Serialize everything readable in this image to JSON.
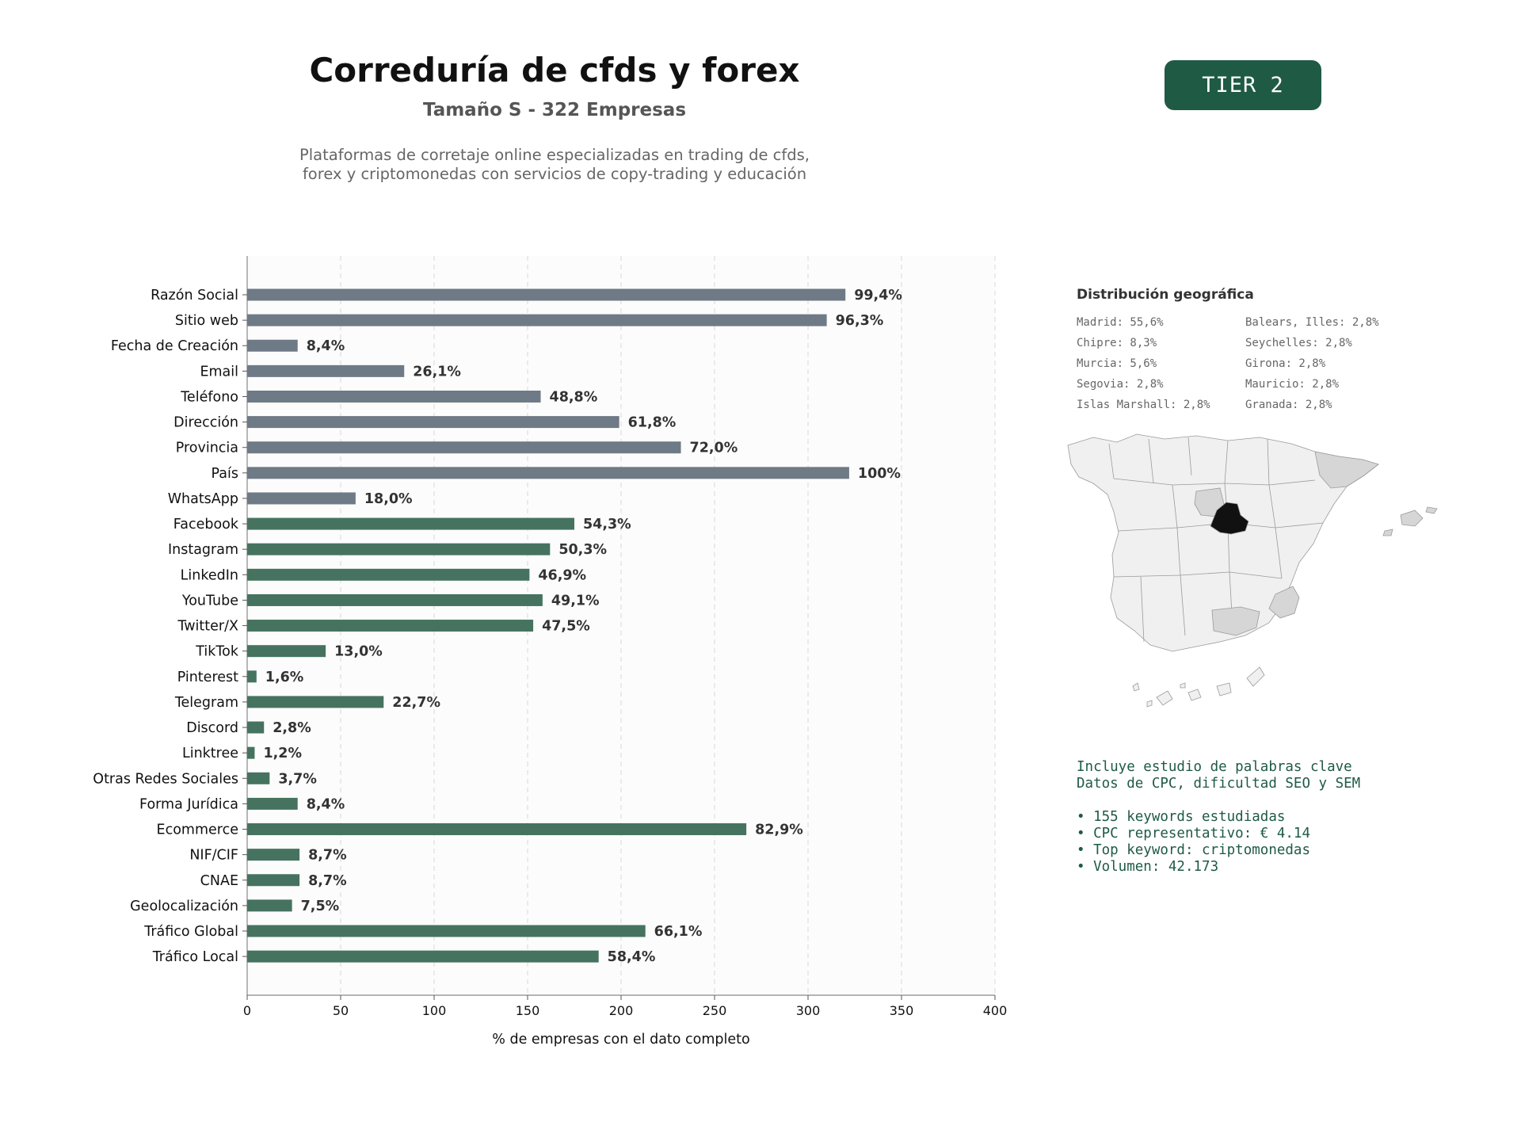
{
  "header": {
    "title": "Correduría de cfds y forex",
    "subtitle": "Tamaño S - 322 Empresas",
    "description_line1": "Plataformas de corretaje online especializadas en trading de cfds,",
    "description_line2": "forex y criptomonedas con servicios de copy-trading y educación",
    "tier": "TIER 2"
  },
  "colors": {
    "grey_bar": "#6e7a85",
    "green_bar": "#45735f",
    "badge": "#1f5a45",
    "madrid": "#111111",
    "highlight_region": "#d6d6d6",
    "base_region": "#f0f0f0"
  },
  "chart_data": {
    "type": "bar",
    "orientation": "horizontal",
    "xlabel": "% de empresas con el dato completo",
    "xlim": [
      0,
      400
    ],
    "xticks": [
      0,
      50,
      100,
      150,
      200,
      250,
      300,
      350,
      400
    ],
    "grid": "vertical dashed",
    "categories": [
      "Razón Social",
      "Sitio web",
      "Fecha de Creación",
      "Email",
      "Teléfono",
      "Dirección",
      "Provincia",
      "País",
      "WhatsApp",
      "Facebook",
      "Instagram",
      "LinkedIn",
      "YouTube",
      "Twitter/X",
      "TikTok",
      "Pinterest",
      "Telegram",
      "Discord",
      "Linktree",
      "Otras Redes Sociales",
      "Forma Jurídica",
      "Ecommerce",
      "NIF/CIF",
      "CNAE",
      "Geolocalización",
      "Tráfico Global",
      "Tráfico Local"
    ],
    "values": [
      320,
      310,
      27,
      84,
      157,
      199,
      232,
      322,
      58,
      175,
      162,
      151,
      158,
      153,
      42,
      5,
      73,
      9,
      4,
      12,
      27,
      267,
      28,
      28,
      24,
      213,
      188
    ],
    "labels": [
      "99,4%",
      "96,3%",
      "8,4%",
      "26,1%",
      "48,8%",
      "61,8%",
      "72,0%",
      "100%",
      "18,0%",
      "54,3%",
      "50,3%",
      "46,9%",
      "49,1%",
      "47,5%",
      "13,0%",
      "1,6%",
      "22,7%",
      "2,8%",
      "1,2%",
      "3,7%",
      "8,4%",
      "82,9%",
      "8,7%",
      "8,7%",
      "7,5%",
      "66,1%",
      "58,4%"
    ],
    "groups": [
      "grey",
      "grey",
      "grey",
      "grey",
      "grey",
      "grey",
      "grey",
      "grey",
      "grey",
      "green",
      "green",
      "green",
      "green",
      "green",
      "green",
      "green",
      "green",
      "green",
      "green",
      "green",
      "green",
      "green",
      "green",
      "green",
      "green",
      "green",
      "green"
    ]
  },
  "geo": {
    "title": "Distribución geográfica",
    "items": [
      "Madrid: 55,6%",
      "Balears, Illes: 2,8%",
      "Chipre: 8,3%",
      "Seychelles: 2,8%",
      "Murcia: 5,6%",
      "Girona: 2,8%",
      "Segovia: 2,8%",
      "Mauricio: 2,8%",
      "Islas Marshall: 2,8%",
      "Granada: 2,8%"
    ]
  },
  "keywords": {
    "line1": "Incluye estudio de palabras clave",
    "line2": "Datos de CPC, dificultad SEO y SEM",
    "bullet1": "• 155 keywords estudiadas",
    "bullet2": "• CPC representativo: € 4.14",
    "bullet3": "• Top keyword: criptomonedas",
    "bullet4": "• Volumen: 42.173"
  }
}
